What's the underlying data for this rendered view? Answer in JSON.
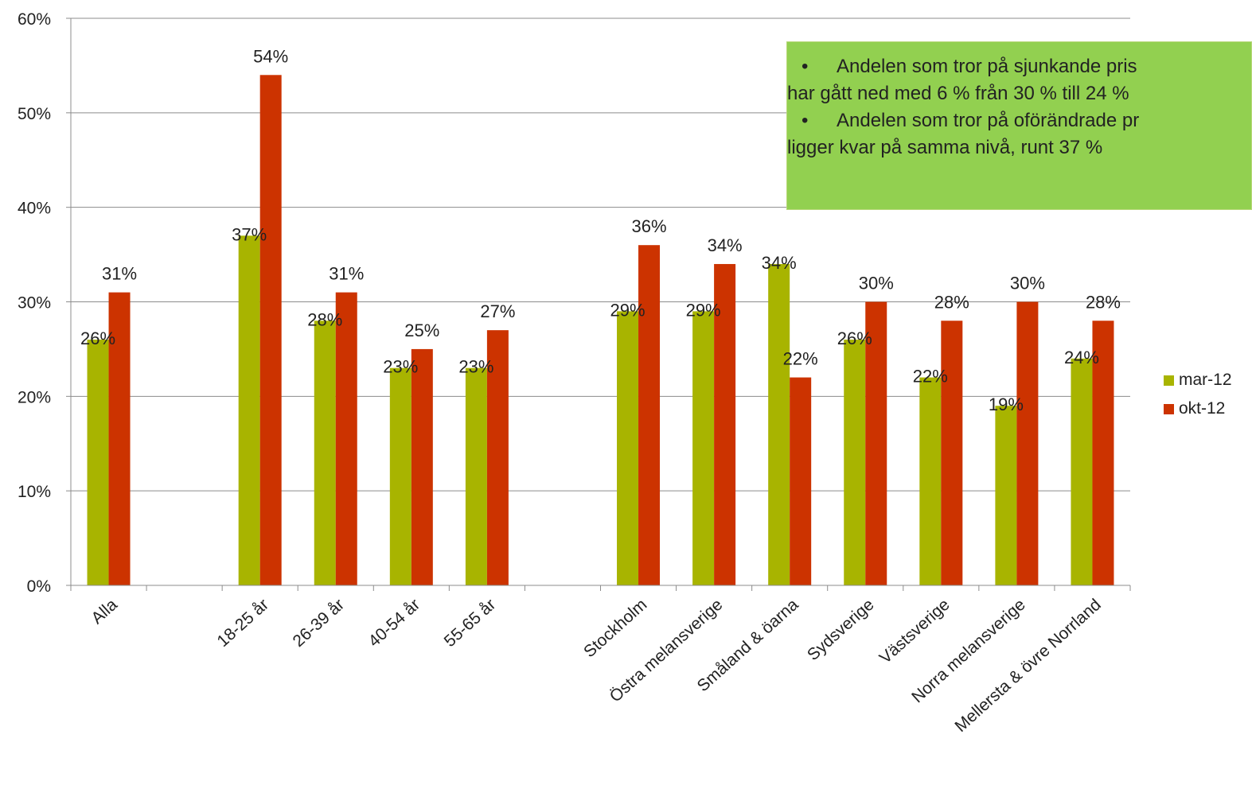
{
  "chart_data": {
    "type": "bar",
    "categories": [
      "Alla",
      "",
      "18-25 år",
      "26-39 år",
      "40-54 år",
      "55-65 år",
      "",
      "Stockholm",
      "Östra melansverige",
      "Småland & öarna",
      "Sydsverige",
      "Västsverige",
      "Norra melansverige",
      "Mellersta & övre Norrland"
    ],
    "series": [
      {
        "name": "mar-12",
        "color": "#a8b400",
        "values": [
          26,
          null,
          37,
          28,
          23,
          23,
          null,
          29,
          29,
          34,
          26,
          22,
          19,
          24
        ],
        "labels": [
          "26%",
          "",
          "37%",
          "28%",
          "23%",
          "23%",
          "",
          "29%",
          "29%",
          "34%",
          "26%",
          "22%",
          "19%",
          "24%"
        ]
      },
      {
        "name": "okt-12",
        "color": "#cc3300",
        "values": [
          31,
          null,
          54,
          31,
          25,
          27,
          null,
          36,
          34,
          22,
          30,
          28,
          30,
          28
        ],
        "labels": [
          "31%",
          "",
          "54%",
          "31%",
          "25%",
          "27%",
          "",
          "36%",
          "34%",
          "22%",
          "30%",
          "28%",
          "30%",
          "28%"
        ]
      }
    ],
    "ylim": [
      0,
      60
    ],
    "yticks": [
      "0%",
      "10%",
      "20%",
      "30%",
      "40%",
      "50%",
      "60%"
    ],
    "grid": true,
    "legend_position": "right"
  },
  "callout": {
    "color": "#92d050",
    "bullet": "•",
    "point1_line1": "Andelen som tror på sjunkande pris",
    "point1_line2": "har gått ned med 6  % från 30 % till 24 %",
    "point2_line1": "Andelen som tror på oförändrade pr",
    "point2_line2": "ligger kvar på samma nivå, runt 37 %"
  }
}
